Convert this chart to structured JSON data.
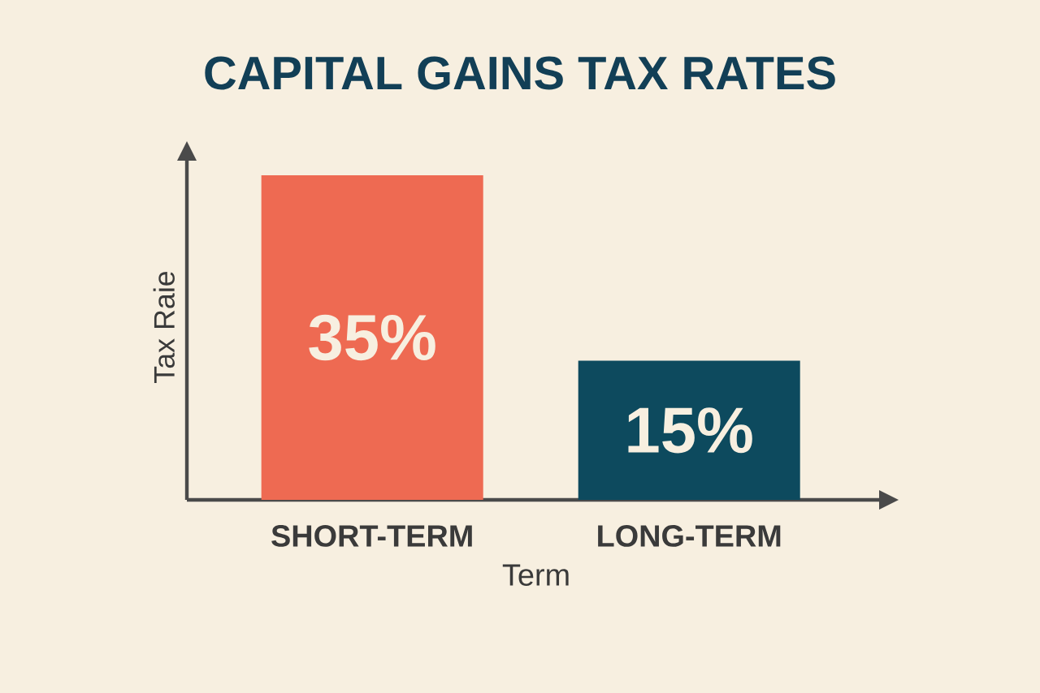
{
  "chart_data": {
    "type": "bar",
    "title": "CAPITAL GAINS TAX RATES",
    "xlabel": "Term",
    "ylabel": "Tax Raie",
    "categories": [
      "SHORT-TERM",
      "LONG-TERM"
    ],
    "values": [
      35,
      15
    ],
    "colors": [
      "#ee6a52",
      "#0d4a5e"
    ],
    "value_labels": [
      "35%",
      "15%"
    ],
    "tick_labels": "x",
    "grid": false
  }
}
